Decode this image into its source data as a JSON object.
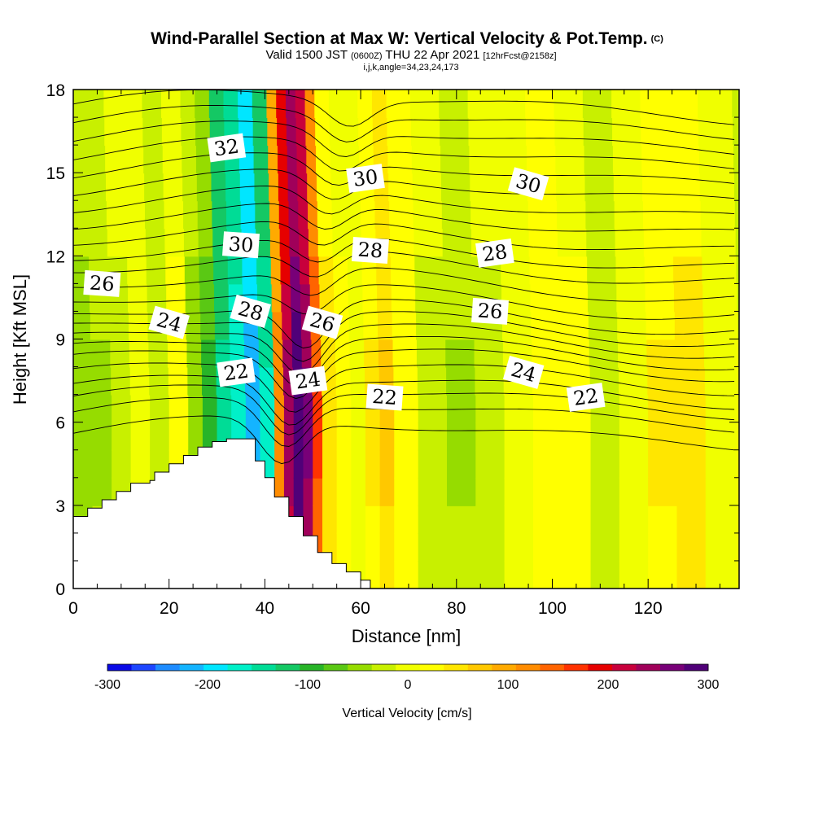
{
  "title": "Wind-Parallel Section at Max W: Vertical Velocity & Pot.Temp.",
  "copyright": "(C)",
  "subtitle_main": "Valid 1500 JST",
  "subtitle_utc": "(0600Z)",
  "subtitle_date": "THU 22 Apr 2021",
  "subtitle_fcst": "[12hrFcst@2158z]",
  "meta": "i,j,k,angle=34,23,24,173",
  "chart_data": {
    "type": "heatmap",
    "description_free": true,
    "xlabel": "Distance [nm]",
    "ylabel": "Height [Kft MSL]",
    "xlim": [
      0,
      139
    ],
    "ylim": [
      0,
      18
    ],
    "x_ticks": [
      0,
      20,
      40,
      60,
      80,
      100,
      120
    ],
    "y_ticks": [
      0,
      3,
      6,
      9,
      12,
      15,
      18
    ],
    "colorbar": {
      "label": "Vertical Velocity [cm/s]",
      "range": [
        -300,
        300
      ],
      "tick_values": [
        -300,
        -200,
        -100,
        0,
        100,
        200,
        300
      ],
      "colors": [
        "#0a0ae6",
        "#1e46ff",
        "#1e8cff",
        "#14b4ff",
        "#00e6ff",
        "#00f0c8",
        "#00dc96",
        "#14c864",
        "#28b428",
        "#5ac814",
        "#96dc00",
        "#c8f000",
        "#f0ff00",
        "#ffff00",
        "#ffe600",
        "#ffc800",
        "#ffaa00",
        "#ff8c00",
        "#ff6400",
        "#ff3200",
        "#e60000",
        "#c8003c",
        "#a0005a",
        "#780078",
        "#500078"
      ]
    },
    "theta_contour_labels": [
      {
        "label": "32",
        "x": 32,
        "y": 15.9
      },
      {
        "label": "30",
        "x": 35,
        "y": 12.4
      },
      {
        "label": "28",
        "x": 37,
        "y": 10.0
      },
      {
        "label": "22",
        "x": 34,
        "y": 7.8
      },
      {
        "label": "26",
        "x": 6,
        "y": 11.0
      },
      {
        "label": "24",
        "x": 20,
        "y": 9.6
      },
      {
        "label": "30",
        "x": 61,
        "y": 14.8
      },
      {
        "label": "28",
        "x": 62,
        "y": 12.2
      },
      {
        "label": "26",
        "x": 52,
        "y": 9.6
      },
      {
        "label": "24",
        "x": 49,
        "y": 7.5
      },
      {
        "label": "22",
        "x": 65,
        "y": 6.9
      },
      {
        "label": "30",
        "x": 95,
        "y": 14.6
      },
      {
        "label": "28",
        "x": 88,
        "y": 12.1
      },
      {
        "label": "26",
        "x": 87,
        "y": 10.0
      },
      {
        "label": "24",
        "x": 94,
        "y": 7.8
      },
      {
        "label": "22",
        "x": 107,
        "y": 6.9
      }
    ],
    "terrain_profile": [
      [
        0,
        2.6
      ],
      [
        3,
        2.6
      ],
      [
        3,
        2.9
      ],
      [
        6,
        2.9
      ],
      [
        6,
        3.2
      ],
      [
        9,
        3.2
      ],
      [
        9,
        3.5
      ],
      [
        12,
        3.5
      ],
      [
        12,
        3.8
      ],
      [
        16,
        3.8
      ],
      [
        16,
        3.9
      ],
      [
        17,
        3.9
      ],
      [
        17,
        4.2
      ],
      [
        20,
        4.2
      ],
      [
        20,
        4.5
      ],
      [
        23,
        4.5
      ],
      [
        23,
        4.8
      ],
      [
        26,
        4.8
      ],
      [
        26,
        5.1
      ],
      [
        29,
        5.1
      ],
      [
        29,
        5.3
      ],
      [
        32,
        5.3
      ],
      [
        32,
        5.4
      ],
      [
        38,
        5.4
      ],
      [
        38,
        4.6
      ],
      [
        40,
        4.6
      ],
      [
        40,
        4.0
      ],
      [
        42,
        4.0
      ],
      [
        42,
        3.3
      ],
      [
        45,
        3.3
      ],
      [
        45,
        2.6
      ],
      [
        48,
        2.6
      ],
      [
        48,
        1.9
      ],
      [
        51,
        1.9
      ],
      [
        51,
        1.3
      ],
      [
        54,
        1.3
      ],
      [
        54,
        0.9
      ],
      [
        57,
        0.9
      ],
      [
        57,
        0.6
      ],
      [
        60,
        0.6
      ],
      [
        60,
        0.3
      ],
      [
        62,
        0.3
      ],
      [
        62,
        0
      ]
    ],
    "w_field_columns": [
      {
        "x": 0,
        "w": -60
      },
      {
        "x": 4,
        "w": -40
      },
      {
        "x": 8,
        "w": -20
      },
      {
        "x": 12,
        "w": 10
      },
      {
        "x": 16,
        "w": -30
      },
      {
        "x": 20,
        "w": 20
      },
      {
        "x": 24,
        "w": -60
      },
      {
        "x": 27,
        "w": -100
      },
      {
        "x": 30,
        "w": -140
      },
      {
        "x": 33,
        "w": -180
      },
      {
        "x": 36,
        "w": -220
      },
      {
        "x": 39,
        "w": -160
      },
      {
        "x": 42,
        "w": 120
      },
      {
        "x": 44,
        "w": 240
      },
      {
        "x": 46,
        "w": 300
      },
      {
        "x": 48,
        "w": 260
      },
      {
        "x": 50,
        "w": 160
      },
      {
        "x": 52,
        "w": 60
      },
      {
        "x": 55,
        "w": 20
      },
      {
        "x": 58,
        "w": 0
      },
      {
        "x": 61,
        "w": 40
      },
      {
        "x": 64,
        "w": 70
      },
      {
        "x": 67,
        "w": 30
      },
      {
        "x": 72,
        "w": -20
      },
      {
        "x": 78,
        "w": -40
      },
      {
        "x": 84,
        "w": -20
      },
      {
        "x": 90,
        "w": 10
      },
      {
        "x": 96,
        "w": 25
      },
      {
        "x": 102,
        "w": 20
      },
      {
        "x": 108,
        "w": -30
      },
      {
        "x": 114,
        "w": 10
      },
      {
        "x": 120,
        "w": 40
      },
      {
        "x": 126,
        "w": 60
      },
      {
        "x": 132,
        "w": -10
      },
      {
        "x": 139,
        "w": -40
      }
    ]
  }
}
